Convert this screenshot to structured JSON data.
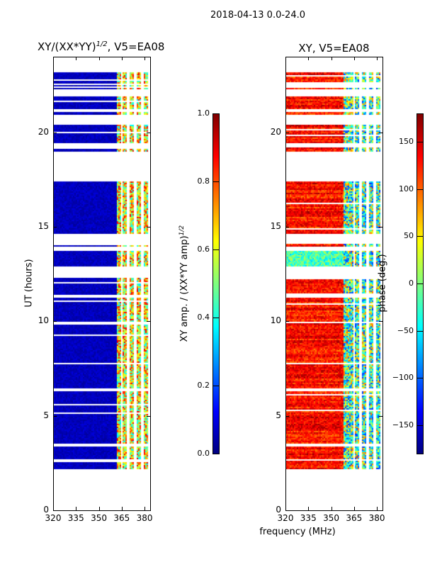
{
  "suptitle": "2018-04-13 0.0-24.0",
  "chart_data": [
    {
      "type": "heatmap",
      "title": "XY/(XX*YY)^1/2, V5=EA08",
      "title_main": "XY/(XX*YY)",
      "title_sup": "1/2",
      "title_tail": ", V5=EA08",
      "xlabel": "",
      "ylabel": "UT (hours)",
      "xlim": [
        320,
        383.7
      ],
      "ylim": [
        0,
        24
      ],
      "xticks": [
        320,
        335,
        350,
        365,
        380
      ],
      "yticks": [
        0,
        5,
        10,
        15,
        20
      ],
      "colorbar": {
        "label_main": "XY amp. / (XX*YY amp)",
        "label_sup": "1/2",
        "range": [
          0,
          1
        ],
        "ticks": [
          "0.0",
          "0.2",
          "0.4",
          "0.6",
          "0.8",
          "1.0"
        ],
        "tick_values": [
          0,
          0.2,
          0.4,
          0.6,
          0.8,
          1.0
        ]
      }
    },
    {
      "type": "heatmap",
      "title": "XY, V5=EA08",
      "xlabel": "frequency (MHz)",
      "ylabel": "",
      "xlim": [
        320,
        383.7
      ],
      "ylim": [
        0,
        24
      ],
      "xticks": [
        320,
        335,
        350,
        365,
        380
      ],
      "yticks": [
        0,
        5,
        10,
        15,
        20
      ],
      "colorbar": {
        "label": "phase (deg.)",
        "range": [
          -180,
          180
        ],
        "ticks": [
          "−150",
          "−100",
          "−50",
          "0",
          "50",
          "100",
          "150"
        ],
        "tick_values": [
          -150,
          -100,
          -50,
          0,
          50,
          100,
          150
        ]
      }
    }
  ],
  "time_segments_hours": [
    [
      2.2,
      3.4
    ],
    [
      3.5,
      6.3
    ],
    [
      6.45,
      7.7
    ],
    [
      7.8,
      9.9
    ],
    [
      10.0,
      11.3
    ],
    [
      11.4,
      12.3
    ],
    [
      12.9,
      13.75
    ],
    [
      13.95,
      14.1
    ],
    [
      14.6,
      17.4
    ],
    [
      19.0,
      19.2
    ],
    [
      19.4,
      20.4
    ],
    [
      20.9,
      21.1
    ],
    [
      21.2,
      21.9
    ],
    [
      22.3,
      22.5
    ],
    [
      22.6,
      23.2
    ]
  ],
  "flagged_channels_mhz": [
    365,
    369.5,
    374,
    378.5
  ]
}
